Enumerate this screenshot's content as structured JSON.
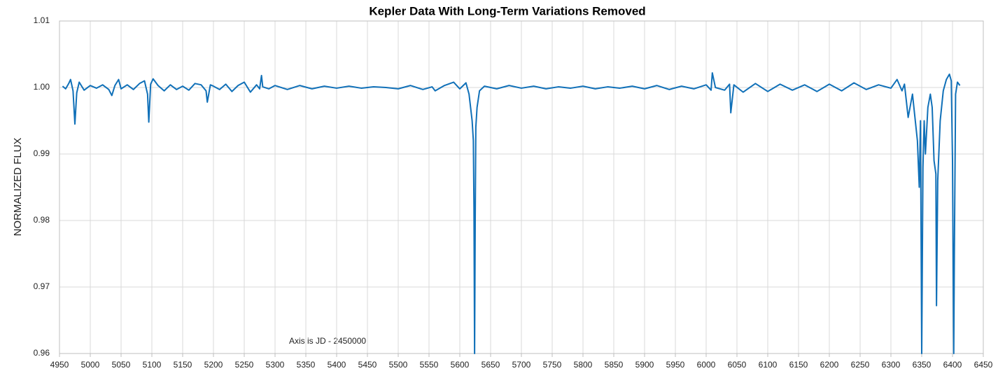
{
  "chart_data": {
    "type": "line",
    "title": "Kepler Data With Long-Term Variations Removed",
    "y_label": "NORMALIZED FLUX",
    "annotation": "Axis is JD - 2450000",
    "grid": true,
    "xlim": [
      4950,
      6450
    ],
    "xticks": [
      4950,
      5000,
      5050,
      5100,
      5150,
      5200,
      5250,
      5300,
      5350,
      5400,
      5450,
      5500,
      5550,
      5600,
      5650,
      5700,
      5750,
      5800,
      5850,
      5900,
      5950,
      6000,
      6050,
      6100,
      6150,
      6200,
      6250,
      6300,
      6350,
      6400,
      6450
    ],
    "ylim": [
      0.96,
      1.01
    ],
    "yticks": [
      0.96,
      0.97,
      0.98,
      0.99,
      {
        "value": 1,
        "label": "1.00"
      },
      1.01
    ],
    "x": [
      4955,
      4960,
      4965,
      4968,
      4972,
      4975,
      4978,
      4982,
      4990,
      5000,
      5010,
      5020,
      5030,
      5035,
      5040,
      5046,
      5050,
      5060,
      5070,
      5080,
      5088,
      5093,
      5095,
      5098,
      5102,
      5110,
      5120,
      5130,
      5140,
      5150,
      5160,
      5170,
      5180,
      5188,
      5190,
      5195,
      5200,
      5210,
      5220,
      5230,
      5240,
      5250,
      5260,
      5270,
      5275,
      5278,
      5280,
      5290,
      5300,
      5320,
      5340,
      5360,
      5380,
      5400,
      5420,
      5440,
      5460,
      5480,
      5500,
      5520,
      5540,
      5555,
      5560,
      5575,
      5590,
      5600,
      5610,
      5615,
      5620,
      5622,
      5623,
      5624,
      5625,
      5626,
      5628,
      5632,
      5640,
      5660,
      5680,
      5700,
      5720,
      5740,
      5760,
      5780,
      5800,
      5820,
      5840,
      5860,
      5880,
      5900,
      5920,
      5940,
      5960,
      5980,
      6000,
      6008,
      6010,
      6015,
      6030,
      6038,
      6040,
      6045,
      6060,
      6080,
      6100,
      6120,
      6140,
      6160,
      6180,
      6200,
      6220,
      6240,
      6260,
      6280,
      6300,
      6310,
      6318,
      6322,
      6328,
      6335,
      6343,
      6346,
      6348,
      6350,
      6352,
      6354,
      6356,
      6360,
      6364,
      6367,
      6370,
      6373,
      6374,
      6376,
      6380,
      6385,
      6390,
      6395,
      6398,
      6400,
      6401,
      6402,
      6403,
      6405,
      6408,
      6412
    ],
    "series": [
      {
        "color": "#1070b8",
        "values": [
          1.0002,
          0.9998,
          1.0006,
          1.0012,
          0.9995,
          0.9945,
          0.9992,
          1.0008,
          0.9996,
          1.0003,
          0.9999,
          1.0004,
          0.9997,
          0.9988,
          1.0003,
          1.0012,
          0.9998,
          1.0004,
          0.9997,
          1.0006,
          1.001,
          0.999,
          0.9948,
          1.0005,
          1.0013,
          1.0003,
          0.9995,
          1.0004,
          0.9997,
          1.0002,
          0.9996,
          1.0006,
          1.0004,
          0.9995,
          0.9978,
          1.0004,
          1.0002,
          0.9997,
          1.0005,
          0.9994,
          1.0003,
          1.0008,
          0.9993,
          1.0004,
          0.9998,
          1.0018,
          1.0001,
          0.9998,
          1.0003,
          0.9997,
          1.0003,
          0.9998,
          1.0002,
          0.9999,
          1.0002,
          0.9999,
          1.0001,
          1.0,
          0.9998,
          1.0003,
          0.9997,
          1.0001,
          0.9995,
          1.0003,
          1.0008,
          0.9998,
          1.0007,
          0.999,
          0.995,
          0.992,
          0.982,
          0.96,
          0.98,
          0.994,
          0.997,
          0.9995,
          1.0002,
          0.9998,
          1.0003,
          0.9999,
          1.0002,
          0.9998,
          1.0001,
          0.9999,
          1.0002,
          0.9998,
          1.0001,
          0.9999,
          1.0002,
          0.9998,
          1.0003,
          0.9997,
          1.0002,
          0.9998,
          1.0004,
          0.9996,
          1.0022,
          1.0,
          0.9996,
          1.0005,
          0.9962,
          1.0004,
          0.9993,
          1.0006,
          0.9994,
          1.0005,
          0.9996,
          1.0004,
          0.9994,
          1.0005,
          0.9995,
          1.0007,
          0.9997,
          1.0004,
          0.9999,
          1.0012,
          0.9995,
          1.0005,
          0.9955,
          0.999,
          0.992,
          0.985,
          0.995,
          0.96,
          0.988,
          0.995,
          0.99,
          0.997,
          0.999,
          0.997,
          0.989,
          0.987,
          0.9672,
          0.986,
          0.995,
          0.9995,
          1.0012,
          1.002,
          1.001,
          0.989,
          0.974,
          0.96,
          0.975,
          0.999,
          1.0008,
          1.0003
        ]
      }
    ]
  }
}
